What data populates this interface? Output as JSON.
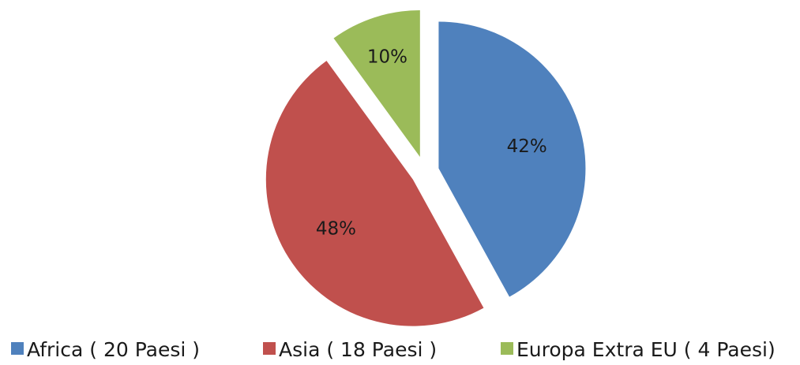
{
  "chart_data": {
    "type": "pie",
    "title": "",
    "series": [
      {
        "values": [
          42,
          48,
          10
        ],
        "labels": [
          "42%",
          "48%",
          "10%"
        ]
      }
    ],
    "categories": [
      "Africa ( 20 Paesi )",
      "Asia ( 18 Paesi )",
      "Europa Extra EU ( 4 Paesi)"
    ],
    "colors": [
      "#4f81bd",
      "#c0504d",
      "#9bbb59"
    ],
    "exploded": true,
    "start_angle": "12 o'clock, clockwise",
    "legend": "bottom"
  }
}
